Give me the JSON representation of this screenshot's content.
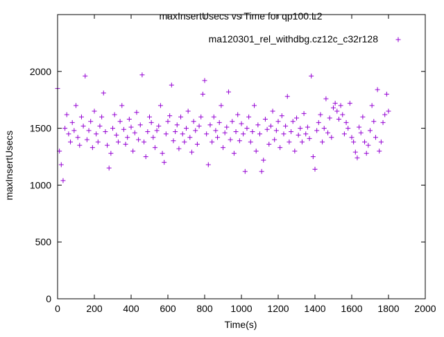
{
  "chart_data": {
    "type": "scatter",
    "title": "maxInsertUsecs vs Time for qp100.L2",
    "xlabel": "Time(s)",
    "ylabel": "maxInsertUsecs",
    "xlim": [
      0,
      2000
    ],
    "ylim": [
      0,
      2500
    ],
    "xticks": [
      "0",
      "200",
      "400",
      "600",
      "800",
      "1000",
      "1200",
      "1400",
      "1600",
      "1800",
      "2000"
    ],
    "yticks": [
      "0",
      "500",
      "1000",
      "1500",
      "2000"
    ],
    "grid": false,
    "legend_position": "top-right",
    "series": [
      {
        "name": "ma120301_rel_withdbg.cz12c_c32r128",
        "color": "#9400d3",
        "marker": "plus",
        "x_start": 0,
        "x_step": 10,
        "values": [
          1850,
          1300,
          1180,
          1040,
          1500,
          1620,
          1450,
          1380,
          1550,
          1480,
          1700,
          1420,
          1350,
          1600,
          1520,
          1960,
          1400,
          1480,
          1560,
          1330,
          1650,
          1450,
          1380,
          1520,
          1600,
          1810,
          1470,
          1350,
          1150,
          1280,
          1500,
          1620,
          1440,
          1380,
          1560,
          1700,
          1490,
          1360,
          1420,
          1580,
          1510,
          1300,
          1460,
          1640,
          1400,
          1530,
          1970,
          1380,
          1250,
          1470,
          1600,
          1550,
          1420,
          1330,
          1480,
          1520,
          1700,
          1280,
          1200,
          1450,
          1560,
          1610,
          1880,
          1390,
          1470,
          1530,
          1320,
          1600,
          1450,
          1380,
          1500,
          1650,
          1420,
          1290,
          1560,
          1480,
          1360,
          1520,
          1600,
          1800,
          1920,
          1450,
          1180,
          1530,
          1380,
          1600,
          1480,
          1420,
          1550,
          1700,
          1330,
          1460,
          1510,
          1820,
          1400,
          1560,
          1280,
          1470,
          1620,
          1390,
          1540,
          1450,
          1120,
          1500,
          1600,
          1380,
          1470,
          1700,
          1300,
          1530,
          1450,
          1120,
          1220,
          1580,
          1490,
          1360,
          1520,
          1650,
          1400,
          1480,
          1560,
          1330,
          1610,
          1450,
          1520,
          1780,
          1380,
          1470,
          1560,
          1300,
          1590,
          1440,
          1500,
          1380,
          1630,
          1450,
          1510,
          1410,
          1960,
          1250,
          1140,
          1480,
          1550,
          1620,
          1380,
          1500,
          1760,
          1460,
          1590,
          1420,
          1680,
          1720,
          1650,
          1580,
          1700,
          1620,
          1450,
          1550,
          1500,
          1720,
          1420,
          1380,
          1290,
          1240,
          1510,
          1460,
          1600,
          1380,
          1280,
          1350,
          1480,
          1700,
          1560,
          1420,
          1840,
          1300,
          1380,
          1550,
          1620,
          1800,
          1650
        ]
      }
    ]
  }
}
